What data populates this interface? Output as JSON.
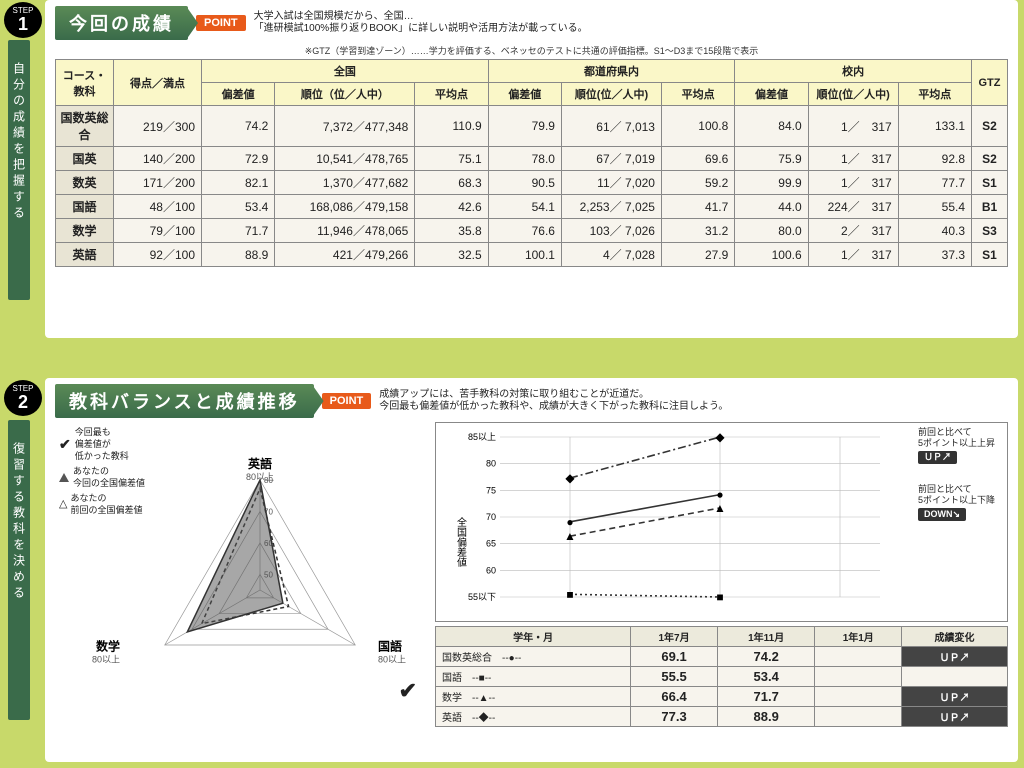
{
  "step1": {
    "label": "STEP",
    "num": "1"
  },
  "step2": {
    "label": "STEP",
    "num": "2"
  },
  "sidebar1": "自分の成績を把握する",
  "sidebar2": "復習する教科を決める",
  "sec1": {
    "title": "今回の成績",
    "point": "POINT",
    "point_text": "大学入試は全国規模だから、全国…\n「進研模試100%振り返りBOOK」に詳しい説明や活用方法が載っている。",
    "gtz_note": "※GTZ（学習到達ゾーン）……学力を評価する、ベネッセのテストに共通の評価指標。S1～D3まで15段階で表示"
  },
  "table": {
    "headers": {
      "course": "コース・\n教科",
      "score": "得点／満点",
      "nat": "全国",
      "pref": "都道府県内",
      "school": "校内",
      "gtz": "GTZ",
      "dev": "偏差値",
      "rank": "順位（位／人中）",
      "avg": "平均点",
      "rank2": "順位(位／人中)"
    },
    "rows": [
      {
        "subj": "国数英総合",
        "score": "219／300",
        "n_dev": "74.2",
        "n_rank": "7,372／477,348",
        "n_avg": "110.9",
        "p_dev": "79.9",
        "p_rank": "61／ 7,013",
        "p_avg": "100.8",
        "s_dev": "84.0",
        "s_rank": "1／　317",
        "s_avg": "133.1",
        "gtz": "S2"
      },
      {
        "subj": "国英",
        "score": "140／200",
        "n_dev": "72.9",
        "n_rank": "10,541／478,765",
        "n_avg": "75.1",
        "p_dev": "78.0",
        "p_rank": "67／ 7,019",
        "p_avg": "69.6",
        "s_dev": "75.9",
        "s_rank": "1／　317",
        "s_avg": "92.8",
        "gtz": "S2"
      },
      {
        "subj": "数英",
        "score": "171／200",
        "n_dev": "82.1",
        "n_rank": "1,370／477,682",
        "n_avg": "68.3",
        "p_dev": "90.5",
        "p_rank": "11／ 7,020",
        "p_avg": "59.2",
        "s_dev": "99.9",
        "s_rank": "1／　317",
        "s_avg": "77.7",
        "gtz": "S1"
      },
      {
        "subj": "国語",
        "score": "48／100",
        "n_dev": "53.4",
        "n_rank": "168,086／479,158",
        "n_avg": "42.6",
        "p_dev": "54.1",
        "p_rank": "2,253／ 7,025",
        "p_avg": "41.7",
        "s_dev": "44.0",
        "s_rank": "224／　317",
        "s_avg": "55.4",
        "gtz": "B1"
      },
      {
        "subj": "数学",
        "score": "79／100",
        "n_dev": "71.7",
        "n_rank": "11,946／478,065",
        "n_avg": "35.8",
        "p_dev": "76.6",
        "p_rank": "103／ 7,026",
        "p_avg": "31.2",
        "s_dev": "80.0",
        "s_rank": "2／　317",
        "s_avg": "40.3",
        "gtz": "S3"
      },
      {
        "subj": "英語",
        "score": "92／100",
        "n_dev": "88.9",
        "n_rank": "421／479,266",
        "n_avg": "32.5",
        "p_dev": "100.1",
        "p_rank": "4／ 7,028",
        "p_avg": "27.9",
        "s_dev": "100.6",
        "s_rank": "1／　317",
        "s_avg": "37.3",
        "gtz": "S1"
      }
    ]
  },
  "sec2": {
    "title": "教科バランスと成績推移",
    "point": "POINT",
    "point_text1": "成績アップには、苦手教科の対策に取り組むことが近道だ。",
    "point_text2": "今回最も偏差値が低かった教科や、成績が大きく下がった教科に注目しよう。"
  },
  "radar": {
    "type": "radar",
    "axes": [
      "英語",
      "国語",
      "数学"
    ],
    "max_label": "80以上",
    "rings": [
      50,
      60,
      70,
      80
    ],
    "current": [
      88.9,
      53.4,
      71.7
    ],
    "previous": [
      77.3,
      55.5,
      66.4
    ],
    "legend": {
      "l1": "今回最も\n偏差値が\n低かった教科",
      "l2": "あなたの\n今回の全国偏差値",
      "l3": "あなたの\n前回の全国偏差値"
    },
    "colors": {
      "grid": "#999",
      "current": "#555",
      "previous": "#555"
    }
  },
  "linechart": {
    "type": "line",
    "ylabel": "全国偏差値",
    "ylim": [
      55,
      85
    ],
    "yticks": [
      "55以下",
      "60",
      "65",
      "70",
      "75",
      "80",
      "85以上"
    ],
    "xticks": [
      "1年7月",
      "1年11月",
      "1年1月"
    ],
    "series": [
      {
        "name": "国数英総合",
        "marker": "●",
        "dash": "solid",
        "y": [
          69.1,
          74.2
        ]
      },
      {
        "name": "国語",
        "marker": "■",
        "dash": "dot",
        "y": [
          55.5,
          53.4
        ]
      },
      {
        "name": "数学",
        "marker": "▲",
        "dash": "dash",
        "y": [
          66.4,
          71.7
        ]
      },
      {
        "name": "英語",
        "marker": "◆",
        "dash": "dashdot",
        "y": [
          77.3,
          88.9
        ]
      }
    ],
    "legend_up": "前回と比べて\n5ポイント以上上昇",
    "legend_down": "前回と比べて\n5ポイント以上下降",
    "up": "ＵＰ↗",
    "down": "DOWN↘",
    "trend_head": [
      "学年・月",
      "1年7月",
      "1年11月",
      "1年1月",
      "成績変化"
    ],
    "colors": {
      "line": "#333",
      "grid": "#aaa",
      "bg": "#f7f4ed"
    }
  }
}
